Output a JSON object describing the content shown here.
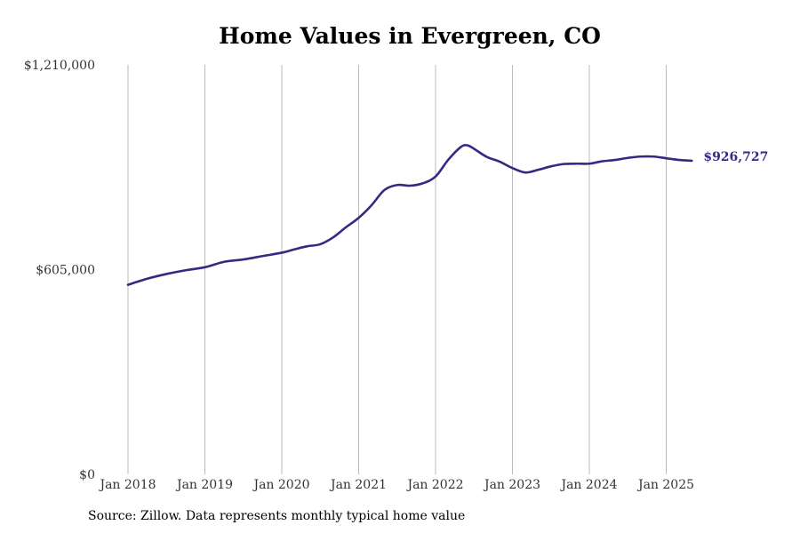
{
  "chart_data": {
    "type": "line",
    "title": "Home Values in Evergreen, CO",
    "xlabel": "",
    "ylabel": "",
    "ylim": [
      0,
      1210000
    ],
    "y_ticks": [
      {
        "value": 0,
        "label": "$0"
      },
      {
        "value": 605000,
        "label": "$605,000"
      },
      {
        "value": 1210000,
        "label": "$1,210,000"
      }
    ],
    "x_ticks": [
      {
        "value": "2018-01",
        "label": "Jan 2018"
      },
      {
        "value": "2019-01",
        "label": "Jan 2019"
      },
      {
        "value": "2020-01",
        "label": "Jan 2020"
      },
      {
        "value": "2021-01",
        "label": "Jan 2021"
      },
      {
        "value": "2022-01",
        "label": "Jan 2022"
      },
      {
        "value": "2023-01",
        "label": "Jan 2023"
      },
      {
        "value": "2024-01",
        "label": "Jan 2024"
      },
      {
        "value": "2025-01",
        "label": "Jan 2025"
      }
    ],
    "grid": "vertical",
    "line_color": "#332a83",
    "series": [
      {
        "x": [
          "2018-01",
          "2018-04",
          "2018-07",
          "2018-10",
          "2019-01",
          "2019-04",
          "2019-07",
          "2019-10",
          "2020-01",
          "2020-03",
          "2020-05",
          "2020-07",
          "2020-09",
          "2020-11",
          "2021-01",
          "2021-03",
          "2021-05",
          "2021-07",
          "2021-09",
          "2021-11",
          "2022-01",
          "2022-03",
          "2022-05",
          "2022-06",
          "2022-07",
          "2022-09",
          "2022-11",
          "2023-01",
          "2023-03",
          "2023-05",
          "2023-07",
          "2023-09",
          "2023-11",
          "2024-01",
          "2024-03",
          "2024-05",
          "2024-07",
          "2024-09",
          "2024-11",
          "2025-01",
          "2025-03",
          "2025-05"
        ],
        "values": [
          560000,
          578000,
          592000,
          603000,
          612000,
          628000,
          635000,
          645000,
          655000,
          665000,
          674000,
          680000,
          700000,
          730000,
          758000,
          795000,
          840000,
          855000,
          853000,
          860000,
          880000,
          930000,
          968000,
          972000,
          962000,
          938000,
          924000,
          905000,
          892000,
          900000,
          910000,
          917000,
          918000,
          918000,
          925000,
          929000,
          935000,
          939000,
          939000,
          934000,
          929000,
          926727
        ]
      }
    ],
    "end_label": "$926,727"
  },
  "source": "Source: Zillow. Data represents monthly typical home value"
}
